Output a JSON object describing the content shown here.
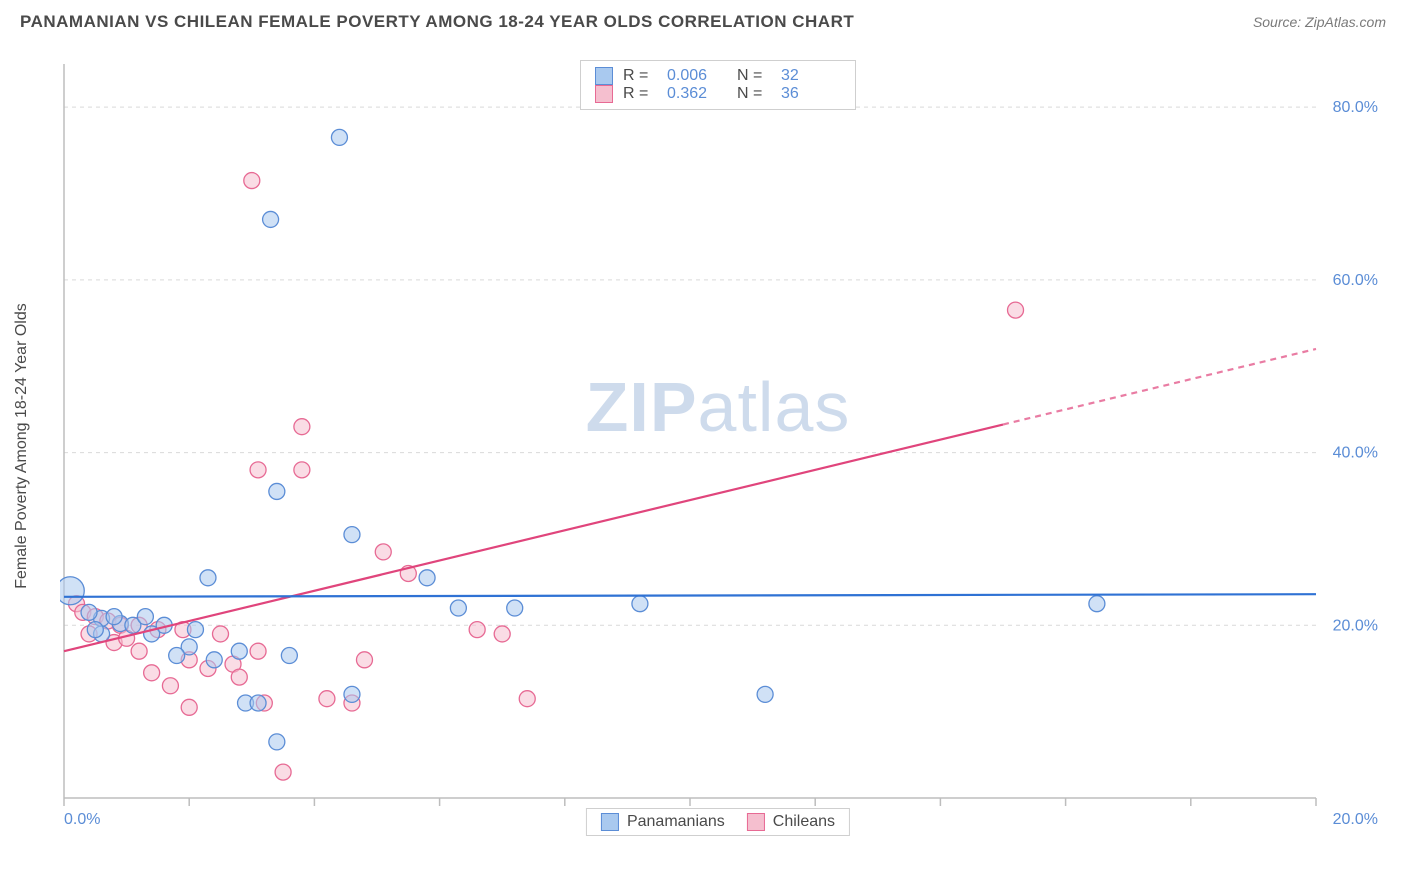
{
  "header": {
    "title": "PANAMANIAN VS CHILEAN FEMALE POVERTY AMONG 18-24 YEAR OLDS CORRELATION CHART",
    "source_prefix": "Source: ",
    "source": "ZipAtlas.com"
  },
  "chart": {
    "type": "scatter",
    "ylabel": "Female Poverty Among 18-24 Year Olds",
    "watermark_bold": "ZIP",
    "watermark_light": "atlas",
    "background_color": "#ffffff",
    "grid_color": "#d9d9d9",
    "axis_color": "#bdbdbd",
    "tick_label_color": "#5b8dd6",
    "xlim": [
      0,
      20
    ],
    "ylim": [
      0,
      85
    ],
    "ytick_values": [
      20,
      40,
      60,
      80
    ],
    "ytick_labels": [
      "20.0%",
      "40.0%",
      "60.0%",
      "80.0%"
    ],
    "xtick_values": [
      0,
      2,
      4,
      6,
      8,
      10,
      12,
      14,
      16,
      18,
      20
    ],
    "x_first_label": "0.0%",
    "x_last_label": "20.0%",
    "series": {
      "panamanians": {
        "label": "Panamanians",
        "fill_color": "#a9c9ef",
        "stroke_color": "#5b8dd6",
        "marker_opacity": 0.55,
        "marker_r": 8,
        "trend_color": "#2f72d4",
        "trend_width": 2.2,
        "trend": {
          "x1": 0,
          "y1": 23.3,
          "x2": 20,
          "y2": 23.6,
          "solid_to_x": 20
        },
        "R": "0.006",
        "N": "32",
        "points": [
          {
            "x": 4.4,
            "y": 76.5
          },
          {
            "x": 3.3,
            "y": 67.0
          },
          {
            "x": 3.4,
            "y": 35.5
          },
          {
            "x": 4.6,
            "y": 30.5
          },
          {
            "x": 2.3,
            "y": 25.5
          },
          {
            "x": 5.8,
            "y": 25.5
          },
          {
            "x": 0.1,
            "y": 24.0,
            "r": 14
          },
          {
            "x": 9.2,
            "y": 22.5
          },
          {
            "x": 16.5,
            "y": 22.5
          },
          {
            "x": 6.3,
            "y": 22.0
          },
          {
            "x": 7.2,
            "y": 22.0
          },
          {
            "x": 0.6,
            "y": 20.8
          },
          {
            "x": 0.9,
            "y": 20.2
          },
          {
            "x": 1.1,
            "y": 20.0
          },
          {
            "x": 1.6,
            "y": 20.0
          },
          {
            "x": 2.1,
            "y": 19.5
          },
          {
            "x": 0.6,
            "y": 19.0
          },
          {
            "x": 1.4,
            "y": 19.0
          },
          {
            "x": 2.0,
            "y": 17.5
          },
          {
            "x": 2.8,
            "y": 17.0
          },
          {
            "x": 3.6,
            "y": 16.5
          },
          {
            "x": 1.8,
            "y": 16.5
          },
          {
            "x": 2.4,
            "y": 16.0
          },
          {
            "x": 4.6,
            "y": 12.0
          },
          {
            "x": 11.2,
            "y": 12.0
          },
          {
            "x": 2.9,
            "y": 11.0
          },
          {
            "x": 3.1,
            "y": 11.0
          },
          {
            "x": 3.4,
            "y": 6.5
          },
          {
            "x": 0.4,
            "y": 21.5
          },
          {
            "x": 0.8,
            "y": 21.0
          },
          {
            "x": 1.3,
            "y": 21.0
          },
          {
            "x": 0.5,
            "y": 19.5
          }
        ]
      },
      "chileans": {
        "label": "Chileans",
        "fill_color": "#f5bfcf",
        "stroke_color": "#e76a94",
        "marker_opacity": 0.55,
        "marker_r": 8,
        "trend_color": "#e0457c",
        "trend_width": 2.2,
        "trend": {
          "x1": 0,
          "y1": 17.0,
          "x2": 20,
          "y2": 52.0,
          "solid_to_x": 15.0
        },
        "R": "0.362",
        "N": "36",
        "points": [
          {
            "x": 3.0,
            "y": 71.5
          },
          {
            "x": 15.2,
            "y": 56.5
          },
          {
            "x": 3.8,
            "y": 43.0
          },
          {
            "x": 3.1,
            "y": 38.0
          },
          {
            "x": 3.8,
            "y": 38.0
          },
          {
            "x": 5.1,
            "y": 28.5
          },
          {
            "x": 5.5,
            "y": 26.0
          },
          {
            "x": 0.2,
            "y": 22.5
          },
          {
            "x": 0.3,
            "y": 21.5
          },
          {
            "x": 0.5,
            "y": 21.0
          },
          {
            "x": 0.7,
            "y": 20.5
          },
          {
            "x": 0.9,
            "y": 20.0
          },
          {
            "x": 1.2,
            "y": 20.0
          },
          {
            "x": 1.5,
            "y": 19.5
          },
          {
            "x": 1.9,
            "y": 19.5
          },
          {
            "x": 2.5,
            "y": 19.0
          },
          {
            "x": 6.6,
            "y": 19.5
          },
          {
            "x": 7.0,
            "y": 19.0
          },
          {
            "x": 1.2,
            "y": 17.0
          },
          {
            "x": 3.1,
            "y": 17.0
          },
          {
            "x": 2.0,
            "y": 16.0
          },
          {
            "x": 2.7,
            "y": 15.5
          },
          {
            "x": 4.8,
            "y": 16.0
          },
          {
            "x": 1.4,
            "y": 14.5
          },
          {
            "x": 2.3,
            "y": 15.0
          },
          {
            "x": 2.8,
            "y": 14.0
          },
          {
            "x": 1.7,
            "y": 13.0
          },
          {
            "x": 4.2,
            "y": 11.5
          },
          {
            "x": 4.6,
            "y": 11.0
          },
          {
            "x": 7.4,
            "y": 11.5
          },
          {
            "x": 3.2,
            "y": 11.0
          },
          {
            "x": 2.0,
            "y": 10.5
          },
          {
            "x": 3.5,
            "y": 3.0
          },
          {
            "x": 0.4,
            "y": 19.0
          },
          {
            "x": 0.8,
            "y": 18.0
          },
          {
            "x": 1.0,
            "y": 18.5
          }
        ]
      }
    },
    "legend_top": {
      "R_label": "R =",
      "N_label": "N ="
    }
  }
}
